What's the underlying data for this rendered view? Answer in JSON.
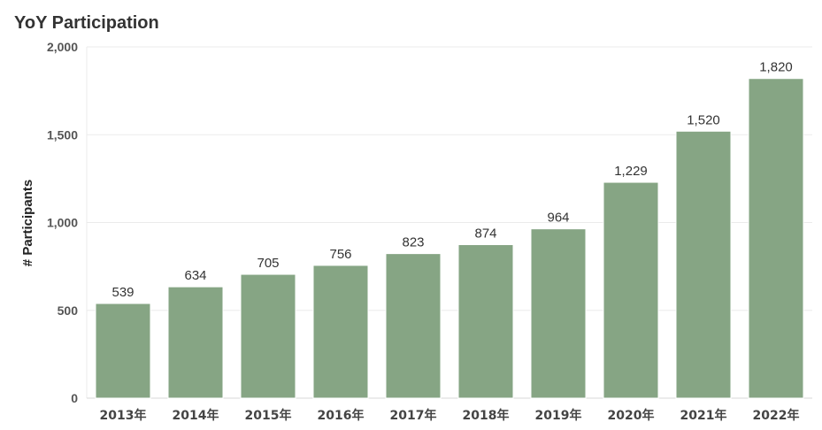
{
  "chart_data": {
    "type": "bar",
    "title": "YoY Participation",
    "xlabel": "",
    "ylabel": "# Participants",
    "categories": [
      "2013年",
      "2014年",
      "2015年",
      "2016年",
      "2017年",
      "2018年",
      "2019年",
      "2020年",
      "2021年",
      "2022年"
    ],
    "values": [
      539,
      634,
      705,
      756,
      823,
      874,
      964,
      1229,
      1520,
      1820
    ],
    "data_labels": [
      "539",
      "634",
      "705",
      "756",
      "823",
      "874",
      "964",
      "1,229",
      "1,520",
      "1,820"
    ],
    "ylim": [
      0,
      2000
    ],
    "y_ticks": [
      0,
      500,
      1000,
      1500,
      2000
    ],
    "y_tick_labels": [
      "0",
      "500",
      "1,000",
      "1,500",
      "2,000"
    ],
    "grid": true,
    "legend": "none",
    "bar_color": "#86a584",
    "bar_edge_color": "#ffffff",
    "grid_color": "#ebebeb"
  }
}
